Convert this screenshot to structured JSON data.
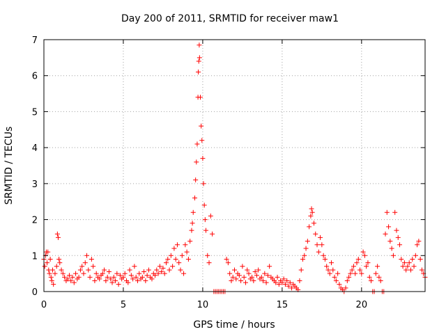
{
  "chart_data": {
    "type": "scatter",
    "title": "Day 200 of 2011, SRMTID for receiver maw1",
    "xlabel": "GPS time / hours",
    "ylabel": "SRMTID / TECUs",
    "xlim": [
      0,
      24
    ],
    "ylim": [
      0,
      7
    ],
    "x_ticks": [
      0,
      5,
      10,
      15,
      20
    ],
    "y_ticks": [
      0,
      1,
      2,
      3,
      4,
      5,
      6,
      7
    ],
    "grid": true,
    "marker": "+",
    "series_color": "#ff0000",
    "series": [
      {
        "name": "SRMTID",
        "points": [
          [
            0.0,
            0.9
          ],
          [
            0.05,
            0.7
          ],
          [
            0.1,
            1.0
          ],
          [
            0.15,
            1.1
          ],
          [
            0.2,
            0.8
          ],
          [
            0.25,
            1.1
          ],
          [
            0.3,
            0.6
          ],
          [
            0.35,
            0.5
          ],
          [
            0.4,
            0.9
          ],
          [
            0.45,
            0.4
          ],
          [
            0.5,
            0.3
          ],
          [
            0.55,
            0.6
          ],
          [
            0.6,
            0.2
          ],
          [
            0.7,
            0.5
          ],
          [
            0.8,
            0.7
          ],
          [
            0.85,
            1.6
          ],
          [
            0.9,
            1.5
          ],
          [
            0.95,
            0.9
          ],
          [
            1.0,
            0.8
          ],
          [
            1.1,
            0.6
          ],
          [
            1.2,
            0.5
          ],
          [
            1.3,
            0.4
          ],
          [
            1.4,
            0.3
          ],
          [
            1.5,
            0.35
          ],
          [
            1.6,
            0.45
          ],
          [
            1.7,
            0.3
          ],
          [
            1.8,
            0.4
          ],
          [
            1.9,
            0.25
          ],
          [
            2.0,
            0.5
          ],
          [
            2.1,
            0.35
          ],
          [
            2.2,
            0.4
          ],
          [
            2.3,
            0.6
          ],
          [
            2.4,
            0.7
          ],
          [
            2.5,
            0.5
          ],
          [
            2.6,
            0.8
          ],
          [
            2.7,
            1.0
          ],
          [
            2.8,
            0.6
          ],
          [
            2.9,
            0.4
          ],
          [
            3.0,
            0.9
          ],
          [
            3.1,
            0.7
          ],
          [
            3.2,
            0.3
          ],
          [
            3.3,
            0.5
          ],
          [
            3.4,
            0.4
          ],
          [
            3.5,
            0.35
          ],
          [
            3.6,
            0.45
          ],
          [
            3.7,
            0.5
          ],
          [
            3.8,
            0.6
          ],
          [
            3.9,
            0.3
          ],
          [
            4.0,
            0.4
          ],
          [
            4.1,
            0.55
          ],
          [
            4.2,
            0.35
          ],
          [
            4.3,
            0.25
          ],
          [
            4.4,
            0.4
          ],
          [
            4.5,
            0.3
          ],
          [
            4.6,
            0.5
          ],
          [
            4.7,
            0.2
          ],
          [
            4.8,
            0.45
          ],
          [
            4.9,
            0.35
          ],
          [
            5.0,
            0.4
          ],
          [
            5.1,
            0.5
          ],
          [
            5.2,
            0.3
          ],
          [
            5.3,
            0.25
          ],
          [
            5.4,
            0.6
          ],
          [
            5.5,
            0.45
          ],
          [
            5.6,
            0.35
          ],
          [
            5.7,
            0.7
          ],
          [
            5.8,
            0.4
          ],
          [
            5.9,
            0.3
          ],
          [
            6.0,
            0.5
          ],
          [
            6.1,
            0.35
          ],
          [
            6.2,
            0.4
          ],
          [
            6.3,
            0.55
          ],
          [
            6.4,
            0.3
          ],
          [
            6.5,
            0.45
          ],
          [
            6.6,
            0.6
          ],
          [
            6.7,
            0.4
          ],
          [
            6.8,
            0.35
          ],
          [
            6.9,
            0.5
          ],
          [
            7.0,
            0.45
          ],
          [
            7.1,
            0.6
          ],
          [
            7.2,
            0.5
          ],
          [
            7.3,
            0.7
          ],
          [
            7.4,
            0.55
          ],
          [
            7.5,
            0.65
          ],
          [
            7.6,
            0.5
          ],
          [
            7.7,
            0.8
          ],
          [
            7.8,
            0.9
          ],
          [
            7.9,
            0.6
          ],
          [
            8.0,
            1.0
          ],
          [
            8.1,
            0.7
          ],
          [
            8.2,
            1.2
          ],
          [
            8.3,
            0.9
          ],
          [
            8.4,
            1.3
          ],
          [
            8.5,
            0.8
          ],
          [
            8.6,
            0.6
          ],
          [
            8.7,
            1.0
          ],
          [
            8.8,
            0.5
          ],
          [
            8.9,
            1.3
          ],
          [
            9.0,
            1.1
          ],
          [
            9.1,
            0.9
          ],
          [
            9.2,
            1.4
          ],
          [
            9.3,
            1.7
          ],
          [
            9.35,
            1.9
          ],
          [
            9.4,
            2.2
          ],
          [
            9.5,
            2.6
          ],
          [
            9.55,
            3.1
          ],
          [
            9.6,
            3.6
          ],
          [
            9.65,
            4.1
          ],
          [
            9.7,
            5.4
          ],
          [
            9.72,
            6.1
          ],
          [
            9.75,
            6.4
          ],
          [
            9.78,
            6.85
          ],
          [
            9.8,
            6.5
          ],
          [
            9.85,
            5.4
          ],
          [
            9.9,
            4.6
          ],
          [
            9.95,
            4.2
          ],
          [
            10.0,
            3.7
          ],
          [
            10.05,
            3.0
          ],
          [
            10.1,
            2.4
          ],
          [
            10.15,
            2.0
          ],
          [
            10.2,
            1.7
          ],
          [
            10.3,
            1.0
          ],
          [
            10.4,
            0.8
          ],
          [
            10.5,
            2.1
          ],
          [
            10.6,
            1.6
          ],
          [
            10.7,
            0.0
          ],
          [
            10.8,
            0.0
          ],
          [
            10.9,
            0.0
          ],
          [
            11.0,
            0.0
          ],
          [
            11.1,
            0.0
          ],
          [
            11.2,
            0.0
          ],
          [
            11.3,
            0.0
          ],
          [
            11.4,
            0.0
          ],
          [
            11.5,
            0.9
          ],
          [
            11.6,
            0.8
          ],
          [
            11.7,
            0.5
          ],
          [
            11.8,
            0.3
          ],
          [
            11.9,
            0.4
          ],
          [
            12.0,
            0.6
          ],
          [
            12.1,
            0.35
          ],
          [
            12.2,
            0.5
          ],
          [
            12.3,
            0.45
          ],
          [
            12.4,
            0.3
          ],
          [
            12.5,
            0.7
          ],
          [
            12.6,
            0.4
          ],
          [
            12.7,
            0.25
          ],
          [
            12.8,
            0.6
          ],
          [
            12.9,
            0.5
          ],
          [
            13.0,
            0.35
          ],
          [
            13.1,
            0.4
          ],
          [
            13.2,
            0.3
          ],
          [
            13.3,
            0.55
          ],
          [
            13.4,
            0.45
          ],
          [
            13.5,
            0.6
          ],
          [
            13.6,
            0.35
          ],
          [
            13.7,
            0.4
          ],
          [
            13.8,
            0.3
          ],
          [
            13.9,
            0.5
          ],
          [
            14.0,
            0.25
          ],
          [
            14.1,
            0.45
          ],
          [
            14.2,
            0.7
          ],
          [
            14.3,
            0.4
          ],
          [
            14.4,
            0.35
          ],
          [
            14.5,
            0.3
          ],
          [
            14.6,
            0.25
          ],
          [
            14.7,
            0.4
          ],
          [
            14.8,
            0.2
          ],
          [
            14.9,
            0.3
          ],
          [
            15.0,
            0.25
          ],
          [
            15.1,
            0.35
          ],
          [
            15.2,
            0.2
          ],
          [
            15.3,
            0.3
          ],
          [
            15.4,
            0.15
          ],
          [
            15.5,
            0.25
          ],
          [
            15.6,
            0.1
          ],
          [
            15.7,
            0.2
          ],
          [
            15.8,
            0.15
          ],
          [
            15.9,
            0.1
          ],
          [
            16.0,
            0.05
          ],
          [
            16.1,
            0.3
          ],
          [
            16.2,
            0.6
          ],
          [
            16.3,
            0.9
          ],
          [
            16.4,
            1.0
          ],
          [
            16.5,
            1.2
          ],
          [
            16.6,
            1.4
          ],
          [
            16.7,
            1.8
          ],
          [
            16.8,
            2.1
          ],
          [
            16.85,
            2.3
          ],
          [
            16.9,
            2.2
          ],
          [
            17.0,
            1.9
          ],
          [
            17.1,
            1.6
          ],
          [
            17.2,
            1.3
          ],
          [
            17.3,
            1.1
          ],
          [
            17.4,
            1.5
          ],
          [
            17.5,
            1.3
          ],
          [
            17.6,
            1.0
          ],
          [
            17.7,
            0.9
          ],
          [
            17.8,
            0.7
          ],
          [
            17.9,
            0.6
          ],
          [
            18.0,
            0.5
          ],
          [
            18.1,
            0.8
          ],
          [
            18.2,
            0.6
          ],
          [
            18.3,
            0.4
          ],
          [
            18.4,
            0.3
          ],
          [
            18.5,
            0.5
          ],
          [
            18.6,
            0.2
          ],
          [
            18.7,
            0.1
          ],
          [
            18.8,
            0.05
          ],
          [
            18.9,
            0.0
          ],
          [
            19.0,
            0.1
          ],
          [
            19.1,
            0.3
          ],
          [
            19.2,
            0.4
          ],
          [
            19.3,
            0.5
          ],
          [
            19.4,
            0.6
          ],
          [
            19.5,
            0.7
          ],
          [
            19.6,
            0.5
          ],
          [
            19.7,
            0.8
          ],
          [
            19.8,
            0.9
          ],
          [
            19.9,
            0.6
          ],
          [
            20.0,
            0.5
          ],
          [
            20.1,
            1.1
          ],
          [
            20.2,
            1.0
          ],
          [
            20.3,
            0.7
          ],
          [
            20.4,
            0.8
          ],
          [
            20.5,
            0.4
          ],
          [
            20.6,
            0.3
          ],
          [
            20.7,
            0.0
          ],
          [
            20.8,
            0.0
          ],
          [
            20.9,
            0.5
          ],
          [
            21.0,
            0.7
          ],
          [
            21.1,
            0.4
          ],
          [
            21.2,
            0.3
          ],
          [
            21.3,
            0.0
          ],
          [
            21.4,
            0.0
          ],
          [
            21.5,
            1.6
          ],
          [
            21.6,
            2.2
          ],
          [
            21.7,
            1.8
          ],
          [
            21.8,
            1.4
          ],
          [
            21.9,
            1.2
          ],
          [
            22.0,
            1.0
          ],
          [
            22.1,
            2.2
          ],
          [
            22.2,
            1.7
          ],
          [
            22.3,
            1.5
          ],
          [
            22.4,
            1.3
          ],
          [
            22.5,
            0.9
          ],
          [
            22.6,
            0.7
          ],
          [
            22.7,
            0.8
          ],
          [
            22.8,
            0.6
          ],
          [
            22.9,
            0.7
          ],
          [
            23.0,
            0.8
          ],
          [
            23.1,
            0.6
          ],
          [
            23.2,
            0.9
          ],
          [
            23.3,
            0.7
          ],
          [
            23.4,
            1.0
          ],
          [
            23.5,
            1.3
          ],
          [
            23.6,
            1.4
          ],
          [
            23.7,
            0.9
          ],
          [
            23.8,
            0.6
          ],
          [
            23.9,
            0.5
          ],
          [
            24.0,
            0.4
          ]
        ]
      }
    ]
  }
}
